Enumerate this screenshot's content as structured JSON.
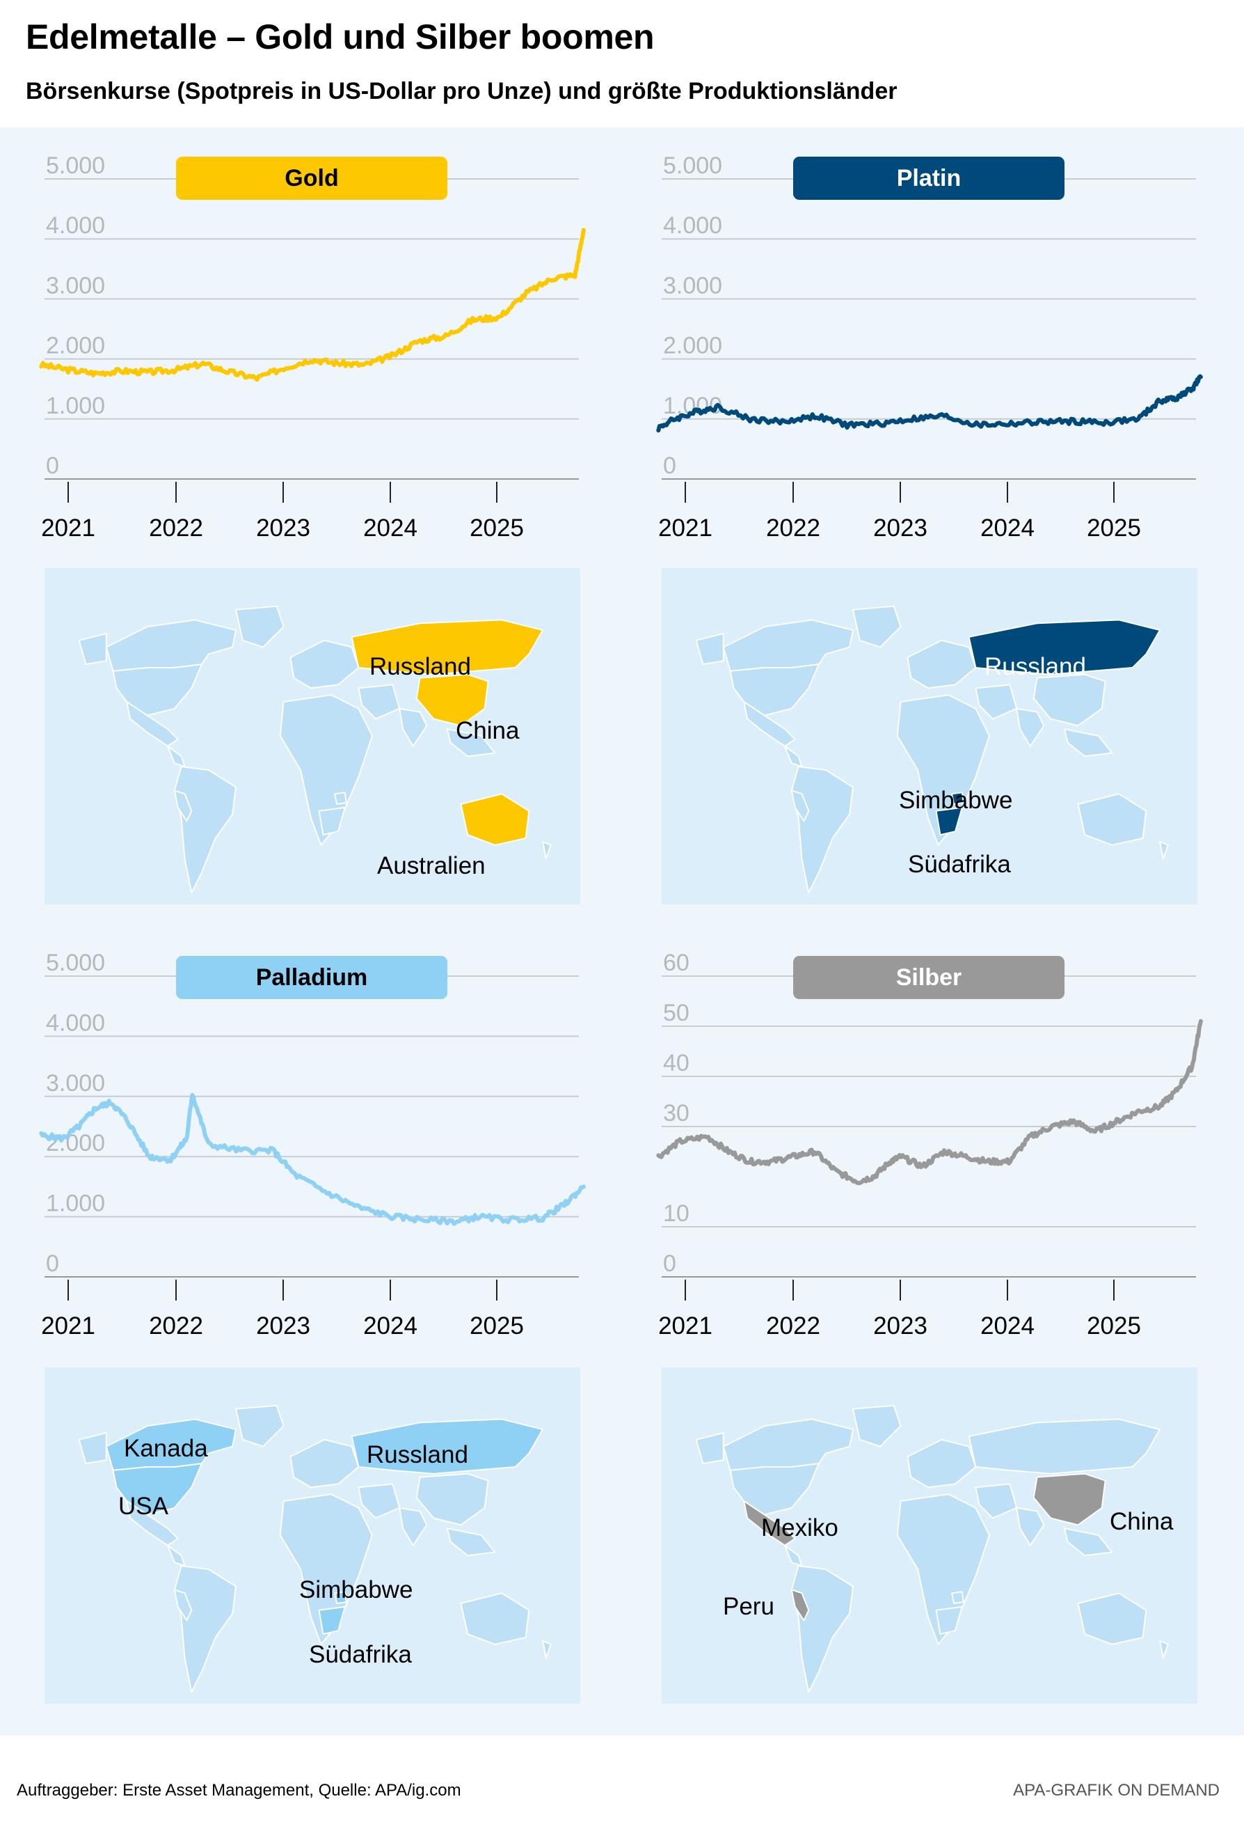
{
  "header": {
    "title": "Edelmetalle – Gold und Silber boomen",
    "subtitle": "Börsenkurse (Spotpreis in US-Dollar pro Unze) und größte Produktionsländer"
  },
  "colors": {
    "gold": "#fdc800",
    "platin": "#00497b",
    "palladium": "#8fd0f5",
    "silber": "#999999",
    "panel": "#eef6fc",
    "map_bg": "#dbeefa",
    "land": "#bde0f6",
    "grid": "#c7ccd1",
    "tick_text": "#b3b8bd"
  },
  "chart_data": [
    {
      "type": "line",
      "name": "Gold",
      "x_ticks": [
        "2021",
        "2022",
        "2023",
        "2024",
        "2025"
      ],
      "ylim": [
        0,
        5000
      ],
      "y_ticks": [
        "0",
        "1.000",
        "2.000",
        "3.000",
        "4.000",
        "5.000"
      ],
      "x": [
        2020.75,
        2021.0,
        2021.25,
        2021.5,
        2021.75,
        2022.0,
        2022.25,
        2022.5,
        2022.75,
        2023.0,
        2023.25,
        2023.5,
        2023.75,
        2024.0,
        2024.25,
        2024.5,
        2024.75,
        2025.0,
        2025.25,
        2025.5,
        2025.7,
        2025.78
      ],
      "values": [
        1900,
        1820,
        1760,
        1800,
        1780,
        1820,
        1920,
        1780,
        1680,
        1850,
        1990,
        1930,
        1900,
        2050,
        2300,
        2380,
        2650,
        2700,
        3100,
        3350,
        3400,
        4150
      ]
    },
    {
      "type": "line",
      "name": "Platin",
      "x_ticks": [
        "2021",
        "2022",
        "2023",
        "2024",
        "2025"
      ],
      "ylim": [
        0,
        5000
      ],
      "y_ticks": [
        "0",
        "1.000",
        "2.000",
        "3.000",
        "4.000",
        "5.000"
      ],
      "x": [
        2020.75,
        2020.9,
        2021.1,
        2021.3,
        2021.6,
        2021.9,
        2022.2,
        2022.5,
        2022.8,
        2023.1,
        2023.4,
        2023.7,
        2024.0,
        2024.3,
        2024.6,
        2024.9,
        2025.2,
        2025.4,
        2025.55,
        2025.7,
        2025.78
      ],
      "values": [
        850,
        1000,
        1120,
        1200,
        1000,
        950,
        1050,
        900,
        920,
        1000,
        1050,
        900,
        920,
        950,
        960,
        940,
        1000,
        1300,
        1350,
        1500,
        1700
      ]
    },
    {
      "type": "line",
      "name": "Palladium",
      "x_ticks": [
        "2021",
        "2022",
        "2023",
        "2024",
        "2025"
      ],
      "ylim": [
        0,
        5000
      ],
      "y_ticks": [
        "0",
        "1.000",
        "2.000",
        "3.000",
        "4.000",
        "5.000"
      ],
      "x": [
        2020.75,
        2020.95,
        2021.1,
        2021.25,
        2021.4,
        2021.55,
        2021.75,
        2021.95,
        2022.1,
        2022.15,
        2022.3,
        2022.6,
        2022.9,
        2023.1,
        2023.4,
        2023.7,
        2024.0,
        2024.3,
        2024.6,
        2024.8,
        2025.1,
        2025.4,
        2025.6,
        2025.78
      ],
      "values": [
        2350,
        2300,
        2500,
        2800,
        2900,
        2600,
        2000,
        1950,
        2300,
        3050,
        2200,
        2100,
        2100,
        1700,
        1400,
        1150,
        1000,
        950,
        920,
        1000,
        950,
        980,
        1200,
        1500
      ]
    },
    {
      "type": "line",
      "name": "Silber",
      "x_ticks": [
        "2021",
        "2022",
        "2023",
        "2024",
        "2025"
      ],
      "ylim": [
        0,
        60
      ],
      "y_ticks": [
        "0",
        "10",
        "30",
        "40",
        "50",
        "60"
      ],
      "x": [
        2020.75,
        2020.95,
        2021.2,
        2021.4,
        2021.6,
        2021.8,
        2022.0,
        2022.2,
        2022.4,
        2022.6,
        2022.75,
        2022.9,
        2023.0,
        2023.2,
        2023.4,
        2023.6,
        2023.8,
        2024.0,
        2024.2,
        2024.4,
        2024.6,
        2024.8,
        2025.0,
        2025.2,
        2025.4,
        2025.55,
        2025.7,
        2025.78
      ],
      "values": [
        24,
        27,
        28,
        25,
        23,
        23,
        24,
        25,
        21,
        19,
        20,
        23,
        24,
        22,
        25,
        24,
        23,
        23,
        28,
        30,
        31,
        29,
        31,
        33,
        34,
        37,
        42,
        51
      ]
    }
  ],
  "panels": [
    {
      "badge": "Gold",
      "map_labels": [
        "Russland",
        "China",
        "Australien"
      ]
    },
    {
      "badge": "Platin",
      "map_labels": [
        "Russland",
        "Simbabwe",
        "Südafrika"
      ]
    },
    {
      "badge": "Palladium",
      "map_labels": [
        "Kanada",
        "USA",
        "Russland",
        "Simbabwe",
        "Südafrika"
      ]
    },
    {
      "badge": "Silber",
      "map_labels": [
        "Mexiko",
        "Peru",
        "China"
      ]
    }
  ],
  "footer": {
    "left": "Auftraggeber: Erste Asset Management, Quelle: APA/ig.com",
    "right": "APA-GRAFIK ON DEMAND"
  }
}
